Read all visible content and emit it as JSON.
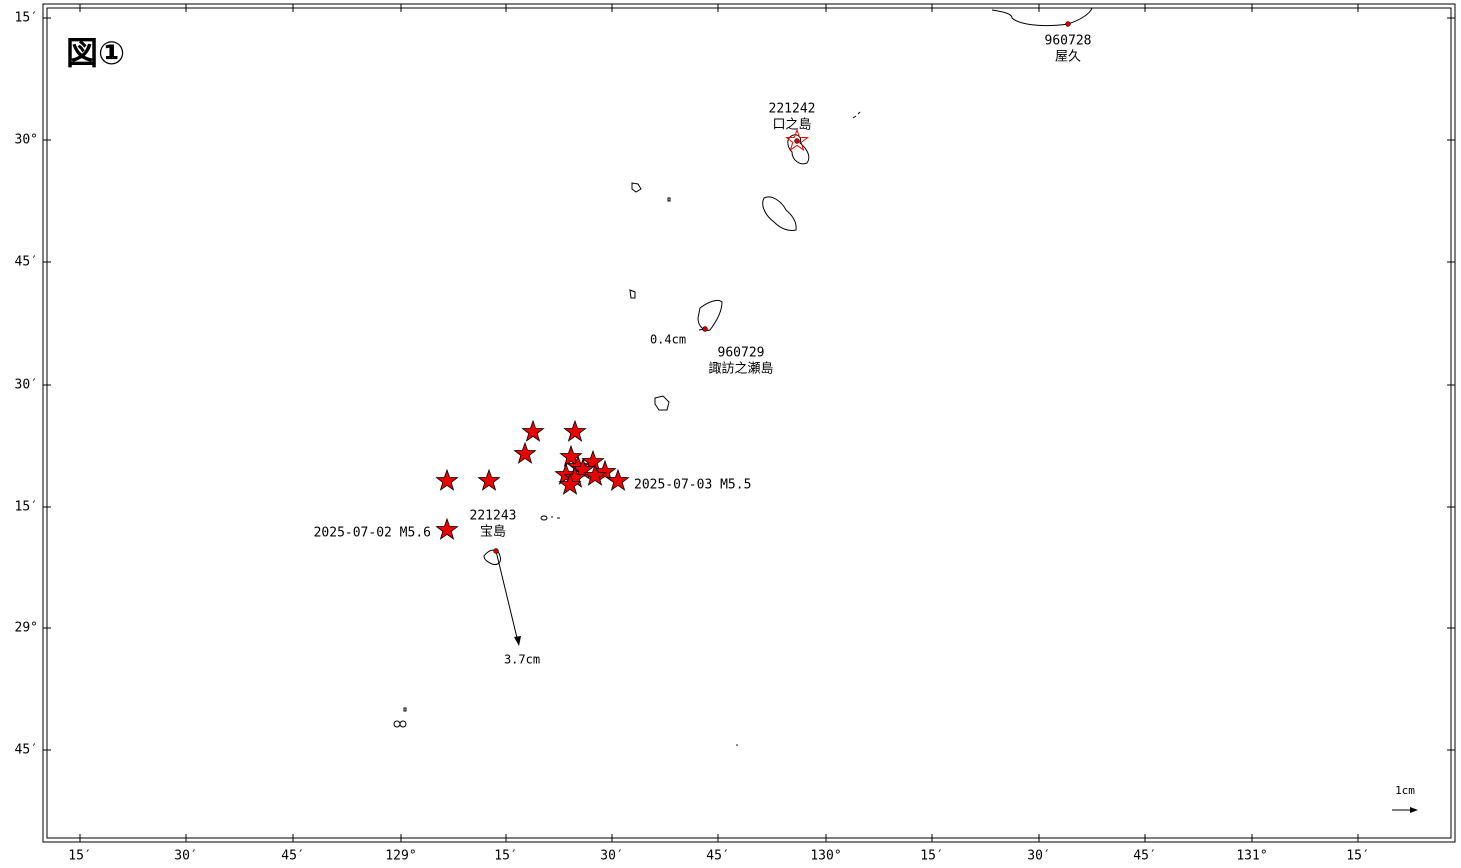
{
  "title": "図①",
  "axes": {
    "lat_labels": [
      "15′",
      "30°",
      "45′",
      "30′",
      "15′",
      "29°",
      "45′"
    ],
    "lon_labels": [
      "15′",
      "30′",
      "45′",
      "129°",
      "15′",
      "30′",
      "45′",
      "130°",
      "15′",
      "30′",
      "45′",
      "131°",
      "15′"
    ]
  },
  "stations": [
    {
      "code": "960728",
      "name": "屋久"
    },
    {
      "code": "221242",
      "name": "口之島"
    },
    {
      "code": "960729",
      "name": "諏訪之瀬島"
    },
    {
      "code": "221243",
      "name": "宝島"
    }
  ],
  "vectors": [
    {
      "label": "0.4cm"
    },
    {
      "label": "3.7cm"
    }
  ],
  "events": [
    {
      "label": "2025-07-02 M5.6"
    },
    {
      "label": "2025-07-03 M5.5"
    }
  ],
  "scale": {
    "label": "1cm"
  }
}
